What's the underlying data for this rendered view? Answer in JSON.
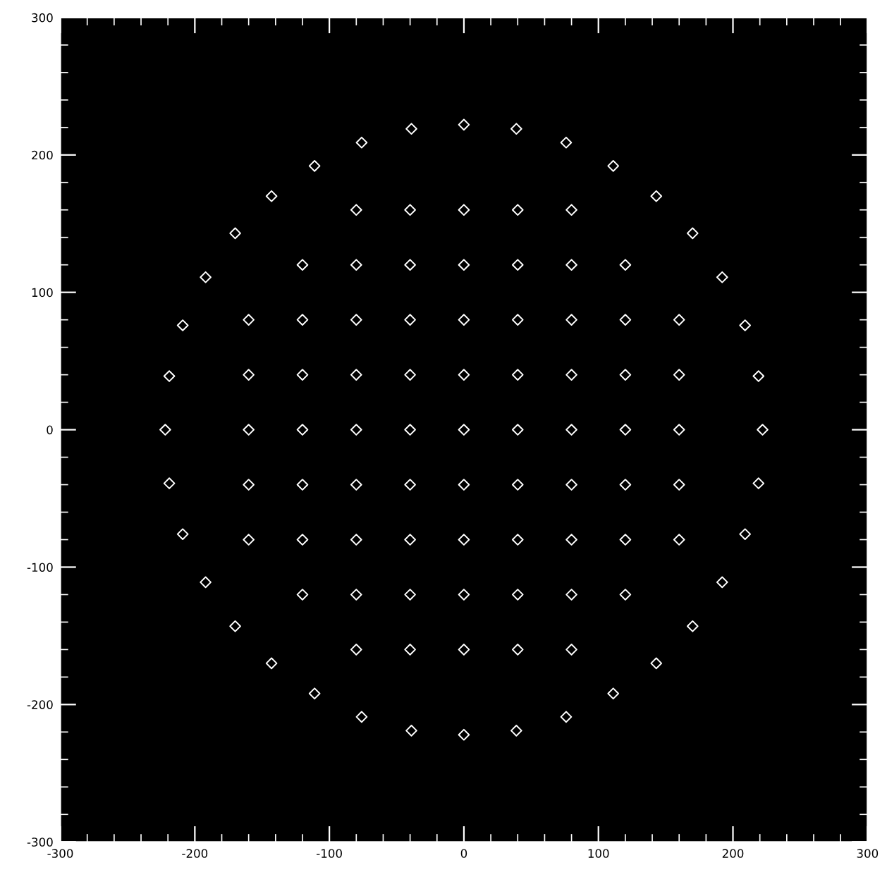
{
  "chart_data": {
    "type": "scatter",
    "marker": "diamond",
    "xlim": [
      -300,
      300
    ],
    "ylim": [
      -300,
      300
    ],
    "xticks": [
      -300,
      -200,
      -100,
      0,
      100,
      200,
      300
    ],
    "yticks": [
      -300,
      -200,
      -100,
      0,
      100,
      200,
      300
    ],
    "grid": false,
    "legend": false,
    "series": [
      {
        "color": "#ffffff",
        "x": [
          -80,
          -40,
          0,
          40,
          80,
          -120,
          -80,
          -40,
          0,
          40,
          80,
          120,
          -160,
          -120,
          -80,
          -40,
          0,
          40,
          80,
          120,
          160,
          -160,
          -120,
          -80,
          -40,
          0,
          40,
          80,
          120,
          160,
          -160,
          -120,
          -80,
          -40,
          0,
          40,
          80,
          120,
          160,
          -160,
          -120,
          -80,
          -40,
          0,
          40,
          80,
          120,
          160,
          -160,
          -120,
          -80,
          -40,
          0,
          40,
          80,
          120,
          160,
          -120,
          -80,
          -40,
          0,
          40,
          80,
          120,
          -80,
          -40,
          0,
          40,
          80,
          222,
          219,
          209,
          192,
          170,
          143,
          111,
          76,
          39,
          0,
          -39,
          -76,
          -111,
          -143,
          -170,
          -192,
          -209,
          -219,
          -222,
          -219,
          -209,
          -192,
          -170,
          -143,
          -111,
          -76,
          -39,
          0,
          39,
          76,
          111,
          143,
          170,
          192,
          209,
          219
        ],
        "values": [
          -160,
          -160,
          -160,
          -160,
          -160,
          -120,
          -120,
          -120,
          -120,
          -120,
          -120,
          -120,
          -80,
          -80,
          -80,
          -80,
          -80,
          -80,
          -80,
          -80,
          -80,
          -40,
          -40,
          -40,
          -40,
          -40,
          -40,
          -40,
          -40,
          -40,
          0,
          0,
          0,
          0,
          0,
          0,
          0,
          0,
          0,
          40,
          40,
          40,
          40,
          40,
          40,
          40,
          40,
          40,
          80,
          80,
          80,
          80,
          80,
          80,
          80,
          80,
          80,
          120,
          120,
          120,
          120,
          120,
          120,
          120,
          160,
          160,
          160,
          160,
          160,
          0,
          39,
          76,
          111,
          143,
          170,
          192,
          209,
          219,
          222,
          219,
          209,
          192,
          170,
          143,
          111,
          76,
          39,
          0,
          -39,
          -76,
          -111,
          -143,
          -170,
          -192,
          -209,
          -219,
          -222,
          -219,
          -209,
          -192,
          -170,
          -143,
          -111,
          -76,
          -39
        ]
      }
    ]
  }
}
